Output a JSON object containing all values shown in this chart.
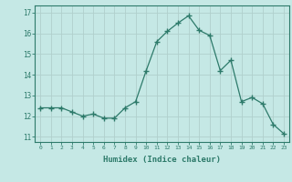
{
  "x": [
    0,
    1,
    2,
    3,
    4,
    5,
    6,
    7,
    8,
    9,
    10,
    11,
    12,
    13,
    14,
    15,
    16,
    17,
    18,
    19,
    20,
    21,
    22,
    23
  ],
  "y": [
    12.4,
    12.4,
    12.4,
    12.2,
    12.0,
    12.1,
    11.9,
    11.9,
    12.4,
    12.7,
    14.2,
    15.6,
    16.1,
    16.5,
    16.85,
    16.15,
    15.9,
    14.2,
    14.7,
    12.7,
    12.9,
    12.6,
    11.6,
    11.15
  ],
  "line_color": "#2d7a6a",
  "marker": "+",
  "marker_size": 4,
  "bg_color": "#c5e8e5",
  "grid_color": "#b0d0cc",
  "xlabel": "Humidex (Indice chaleur)",
  "ylabel_ticks": [
    11,
    12,
    13,
    14,
    15,
    16,
    17
  ],
  "xlim": [
    -0.5,
    23.5
  ],
  "ylim": [
    10.75,
    17.35
  ],
  "tick_color": "#2d7a6a",
  "spine_color": "#2d7a6a"
}
